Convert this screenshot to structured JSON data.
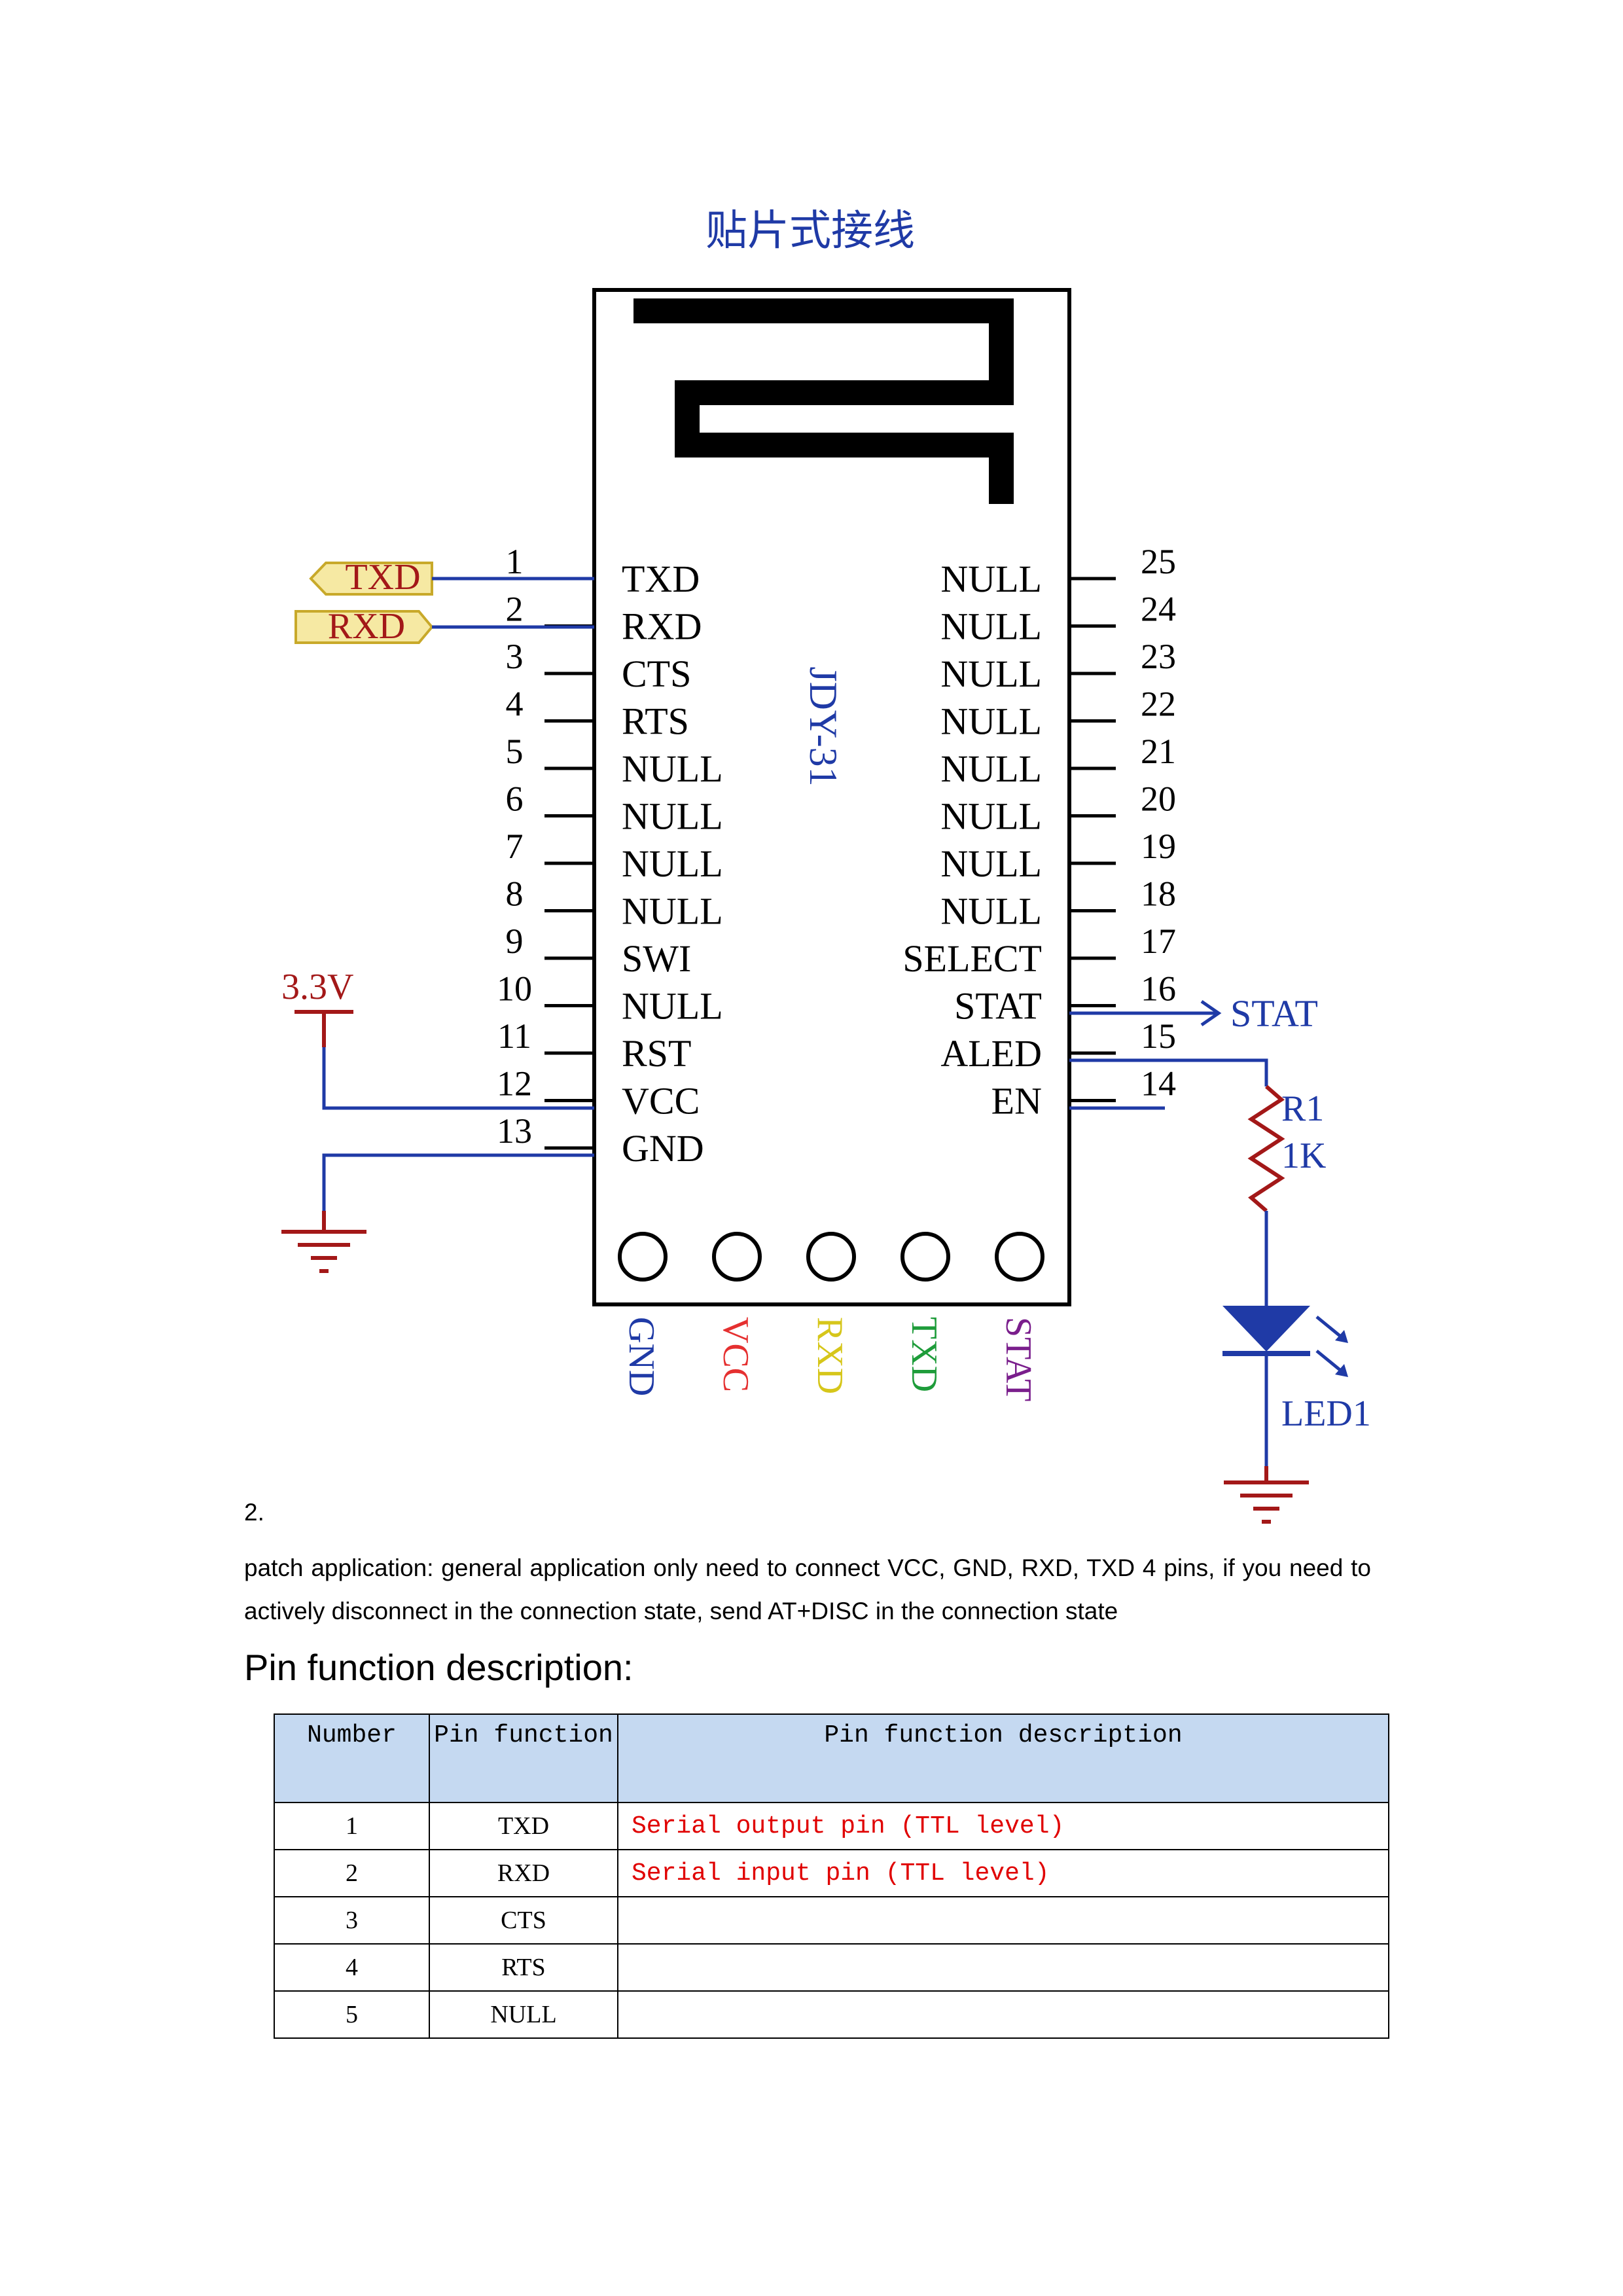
{
  "diagram": {
    "title": "贴片式接线",
    "module_name": "JDY-31",
    "left_pins": [
      {
        "num": "1",
        "name": "TXD"
      },
      {
        "num": "2",
        "name": "RXD"
      },
      {
        "num": "3",
        "name": "CTS"
      },
      {
        "num": "4",
        "name": "RTS"
      },
      {
        "num": "5",
        "name": "NULL"
      },
      {
        "num": "6",
        "name": "NULL"
      },
      {
        "num": "7",
        "name": "NULL"
      },
      {
        "num": "8",
        "name": "NULL"
      },
      {
        "num": "9",
        "name": "SWI"
      },
      {
        "num": "10",
        "name": "NULL"
      },
      {
        "num": "11",
        "name": "RST"
      },
      {
        "num": "12",
        "name": "VCC"
      },
      {
        "num": "13",
        "name": "GND"
      }
    ],
    "right_pins": [
      {
        "num": "25",
        "name": "NULL"
      },
      {
        "num": "24",
        "name": "NULL"
      },
      {
        "num": "23",
        "name": "NULL"
      },
      {
        "num": "22",
        "name": "NULL"
      },
      {
        "num": "21",
        "name": "NULL"
      },
      {
        "num": "20",
        "name": "NULL"
      },
      {
        "num": "19",
        "name": "NULL"
      },
      {
        "num": "18",
        "name": "NULL"
      },
      {
        "num": "17",
        "name": "SELECT"
      },
      {
        "num": "16",
        "name": "STAT"
      },
      {
        "num": "15",
        "name": "ALED"
      },
      {
        "num": "14",
        "name": "EN"
      }
    ],
    "bottom_pins": [
      {
        "label": "GND",
        "color": "#1f3aa6"
      },
      {
        "label": "VCC",
        "color": "#e53030"
      },
      {
        "label": "RXD",
        "color": "#d6c61a"
      },
      {
        "label": "TXD",
        "color": "#1e9c3a"
      },
      {
        "label": "STAT",
        "color": "#7a1e8c"
      }
    ],
    "net_txd": "TXD",
    "net_rxd": "RXD",
    "power_label": "3.3V",
    "stat_label": "STAT",
    "resistor_ref": "R1",
    "resistor_value": "1K",
    "led_ref": "LED1"
  },
  "section_number": "2.",
  "paragraph": "patch application: general application only need to connect VCC, GND, RXD, TXD 4 pins, if you need to actively disconnect in the connection state, send AT+DISC in the connection state",
  "heading": "Pin function description:",
  "table": {
    "headers": [
      "Number",
      "Pin function",
      "Pin function description"
    ],
    "rows": [
      {
        "number": "1",
        "pin": "TXD",
        "desc": "Serial output pin (TTL level)"
      },
      {
        "number": "2",
        "pin": "RXD",
        "desc": "Serial input pin (TTL level)"
      },
      {
        "number": "3",
        "pin": "CTS",
        "desc": ""
      },
      {
        "number": "4",
        "pin": "RTS",
        "desc": ""
      },
      {
        "number": "5",
        "pin": "NULL",
        "desc": ""
      }
    ]
  }
}
